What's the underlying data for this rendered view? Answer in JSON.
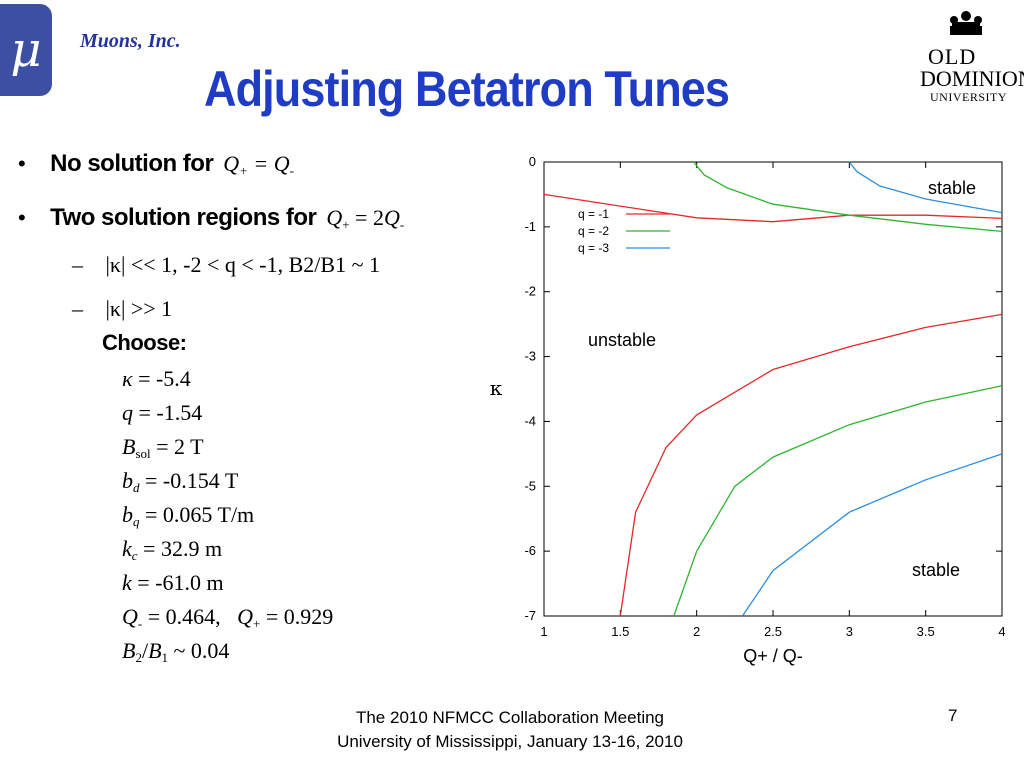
{
  "header": {
    "logo_symbol": "μ",
    "company": "Muons, Inc.",
    "title": "Adjusting Betatron Tunes",
    "odu_logo": {
      "line1": "OLD",
      "line2": "DOMINION",
      "line3": "UNIVERSITY"
    }
  },
  "bullets": {
    "b1_text": "No solution for",
    "b2_text": "Two solution regions for",
    "sub1": "|κ| << 1,   -2 < q < -1,   B2/B1 ~ 1",
    "sub2": "|κ| >> 1",
    "choose": "Choose:"
  },
  "params": {
    "kappa": "= -5.4",
    "q": "= -1.54",
    "bsol": "= 2 T",
    "bd": "= -0.154 T",
    "bq": "= 0.065 T/m",
    "kc": "= 32.9 m",
    "k": "= -61.0 m",
    "qminus": "= 0.464,",
    "qplus": "= 0.929",
    "b2b1": "~ 0.04"
  },
  "footer": {
    "line1": "The 2010 NFMCC Collaboration Meeting",
    "line2": "University of Mississippi, January 13-16, 2010",
    "page": "7"
  },
  "colors": {
    "accent": "#1f3cc4",
    "red": "#e32a2a",
    "green": "#2fb52f",
    "blue": "#2b8fe0"
  },
  "chart_data": {
    "type": "line",
    "xlabel": "Q+ / Q-",
    "ylabel": "κ",
    "xlim": [
      1,
      4
    ],
    "ylim": [
      -7,
      0
    ],
    "xticks": [
      "1",
      "1.5",
      "2",
      "2.5",
      "3",
      "3.5",
      "4"
    ],
    "yticks": [
      "0",
      "-1",
      "-2",
      "-3",
      "-4",
      "-5",
      "-6",
      "-7"
    ],
    "grid": false,
    "legend_position": "top-left",
    "annotations": [
      "stable",
      "unstable",
      "stable"
    ],
    "series": [
      {
        "name": "q = -1",
        "color": "#e32a2a",
        "upper": [
          [
            1.0,
            -0.5
          ],
          [
            1.5,
            -0.68
          ],
          [
            2.0,
            -0.86
          ],
          [
            2.5,
            -0.92
          ],
          [
            3.0,
            -0.82
          ],
          [
            3.5,
            -0.82
          ],
          [
            4.0,
            -0.87
          ]
        ],
        "lower": [
          [
            1.5,
            -7.0
          ],
          [
            1.6,
            -5.4
          ],
          [
            1.8,
            -4.4
          ],
          [
            2.0,
            -3.9
          ],
          [
            2.5,
            -3.2
          ],
          [
            3.0,
            -2.85
          ],
          [
            3.5,
            -2.55
          ],
          [
            4.0,
            -2.35
          ]
        ]
      },
      {
        "name": "q = -2",
        "color": "#2fb52f",
        "upper": [
          [
            1.98,
            0.0
          ],
          [
            2.05,
            -0.2
          ],
          [
            2.2,
            -0.4
          ],
          [
            2.5,
            -0.65
          ],
          [
            3.0,
            -0.82
          ],
          [
            3.5,
            -0.96
          ],
          [
            4.0,
            -1.07
          ]
        ],
        "lower": [
          [
            1.85,
            -7.0
          ],
          [
            2.0,
            -6.0
          ],
          [
            2.25,
            -5.0
          ],
          [
            2.5,
            -4.55
          ],
          [
            3.0,
            -4.05
          ],
          [
            3.5,
            -3.7
          ],
          [
            4.0,
            -3.45
          ]
        ]
      },
      {
        "name": "q = -3",
        "color": "#2b8fe0",
        "upper": [
          [
            3.0,
            0.0
          ],
          [
            3.05,
            -0.15
          ],
          [
            3.2,
            -0.37
          ],
          [
            3.5,
            -0.57
          ],
          [
            4.0,
            -0.78
          ]
        ],
        "lower": [
          [
            2.3,
            -7.0
          ],
          [
            2.5,
            -6.3
          ],
          [
            3.0,
            -5.4
          ],
          [
            3.5,
            -4.9
          ],
          [
            4.0,
            -4.5
          ]
        ]
      }
    ]
  }
}
